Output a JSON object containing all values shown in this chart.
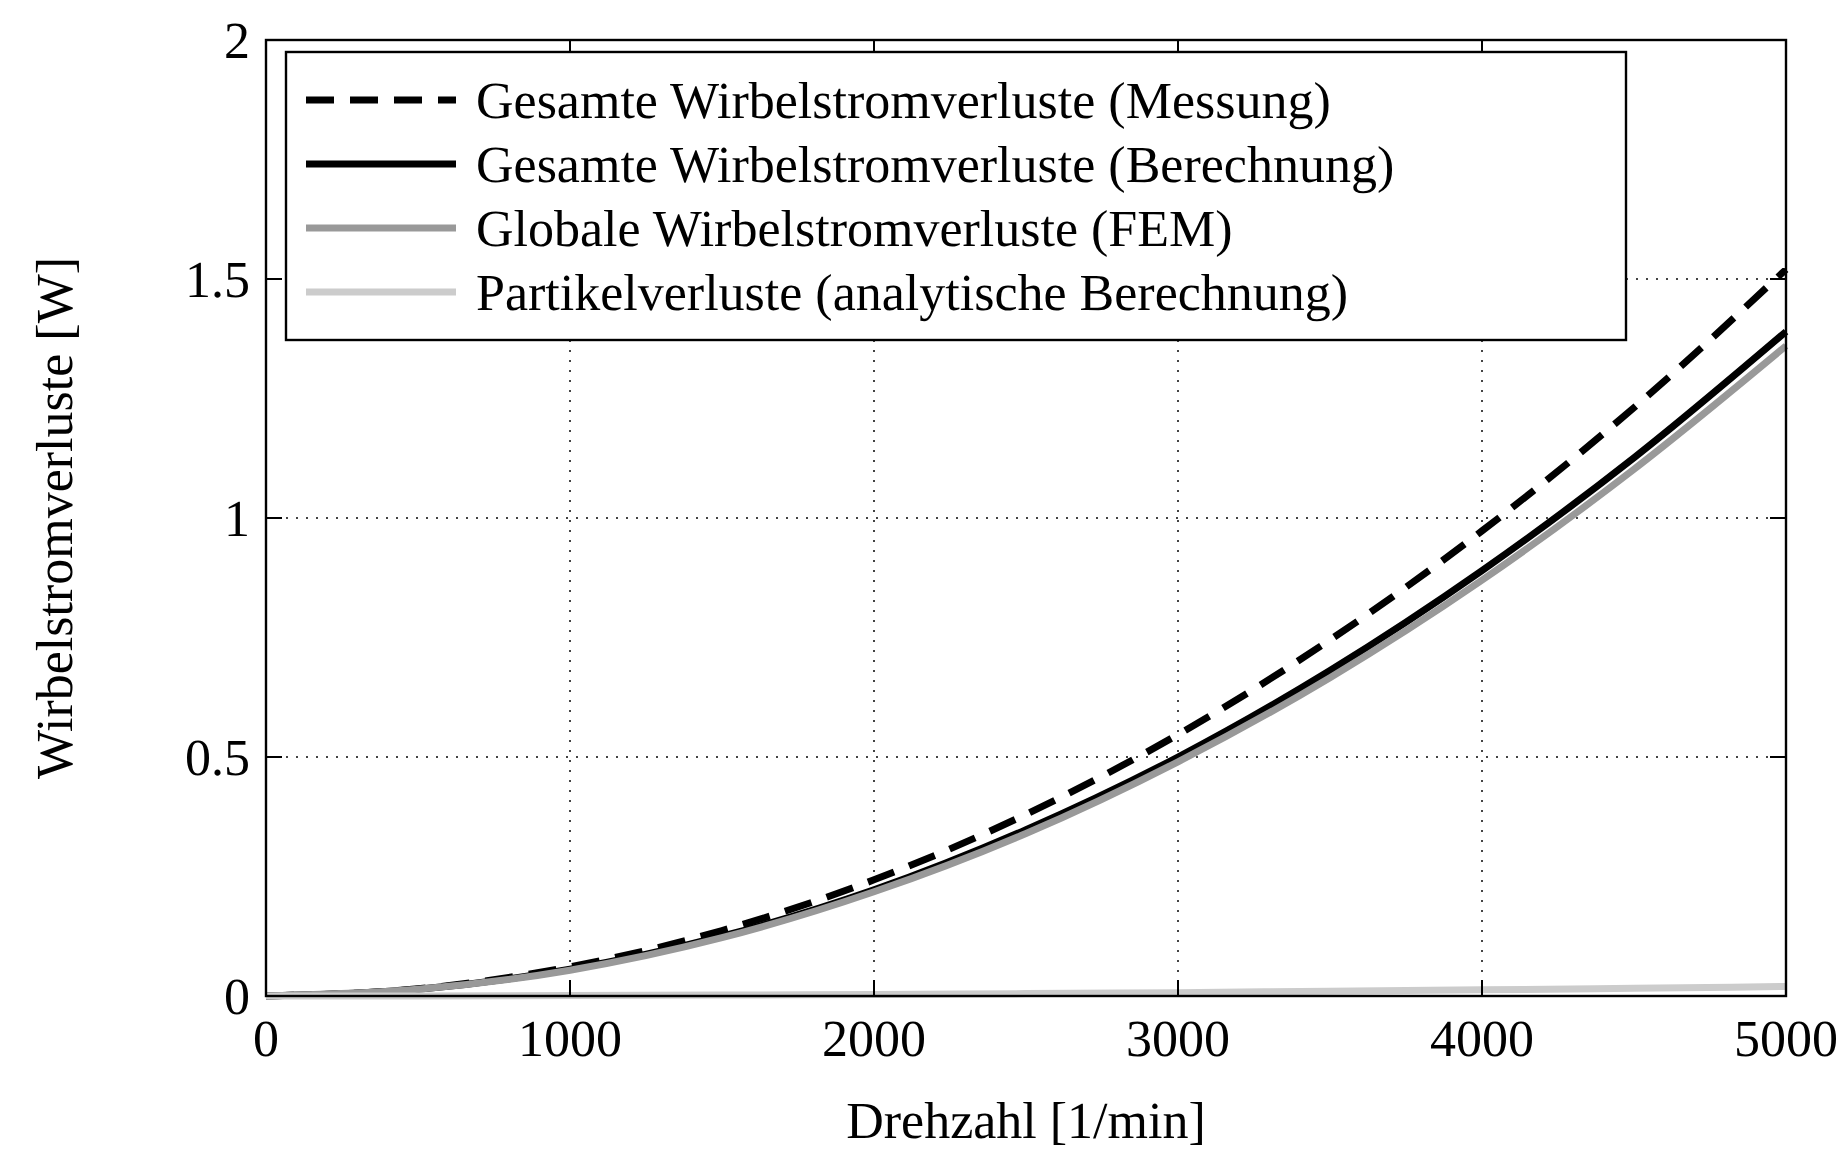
{
  "chart_data": {
    "type": "line",
    "xlabel": "Drehzahl [1/min]",
    "ylabel": "Wirbelstromverluste [W]",
    "x": [
      0,
      500,
      1000,
      1500,
      2000,
      2500,
      3000,
      3500,
      4000,
      4500,
      5000
    ],
    "series": [
      {
        "name": "Gesamte Wirbelstromverluste (Messung)",
        "color": "#000000",
        "line_style": "dashed",
        "values": [
          0,
          0.015,
          0.061,
          0.137,
          0.243,
          0.38,
          0.547,
          0.745,
          0.973,
          1.231,
          1.52
        ]
      },
      {
        "name": "Gesamte Wirbelstromverluste (Berechnung)",
        "color": "#000000",
        "line_style": "solid",
        "values": [
          0,
          0.014,
          0.056,
          0.125,
          0.222,
          0.348,
          0.5,
          0.681,
          0.89,
          1.126,
          1.39
        ]
      },
      {
        "name": "Globale Wirbelstromverluste (FEM)",
        "color": "#999999",
        "line_style": "solid",
        "values": [
          0,
          0.014,
          0.054,
          0.122,
          0.218,
          0.34,
          0.49,
          0.666,
          0.87,
          1.102,
          1.36
        ]
      },
      {
        "name": "Partikelverluste (analytische Berechnung)",
        "color": "#cccccc",
        "line_style": "solid",
        "values": [
          0,
          0,
          0.001,
          0.002,
          0.003,
          0.005,
          0.007,
          0.01,
          0.013,
          0.016,
          0.02
        ]
      }
    ],
    "xlim": [
      0,
      5000
    ],
    "xticks": [
      0,
      1000,
      2000,
      3000,
      4000,
      5000
    ],
    "ylim": [
      0,
      2
    ],
    "yticks": [
      0,
      0.5,
      1,
      1.5,
      2
    ],
    "grid": true,
    "legend": "top left"
  }
}
